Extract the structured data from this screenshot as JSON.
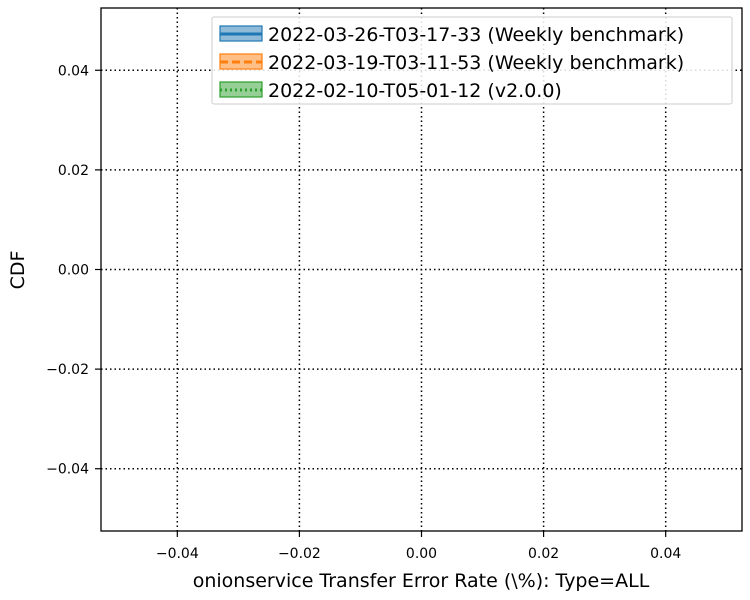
{
  "chart_data": {
    "type": "line",
    "xlabel": "onionservice Transfer Error Rate (\\%): Type=ALL",
    "ylabel": "CDF",
    "xlim": [
      -0.0525,
      0.0525
    ],
    "ylim": [
      -0.0525,
      0.0525
    ],
    "xticks": [
      -0.04,
      -0.02,
      0.0,
      0.02,
      0.04
    ],
    "yticks": [
      -0.04,
      -0.02,
      0.0,
      0.02,
      0.04
    ],
    "xtick_labels": [
      "−0.04",
      "−0.02",
      "0.00",
      "0.02",
      "0.04"
    ],
    "ytick_labels": [
      "−0.04",
      "−0.02",
      "0.00",
      "0.02",
      "0.04"
    ],
    "grid": true,
    "legend_position": "top-right",
    "series": [
      {
        "name": "2022-03-26-T03-17-33 (Weekly benchmark)",
        "color": "#1f77b4",
        "line_style": "solid",
        "x": [],
        "y": []
      },
      {
        "name": "2022-03-19-T03-11-53 (Weekly benchmark)",
        "color": "#ff7f0e",
        "line_style": "dashed",
        "x": [],
        "y": []
      },
      {
        "name": "2022-02-10-T05-01-12 (v2.0.0)",
        "color": "#2ca02c",
        "line_style": "dotted",
        "x": [],
        "y": []
      }
    ]
  }
}
